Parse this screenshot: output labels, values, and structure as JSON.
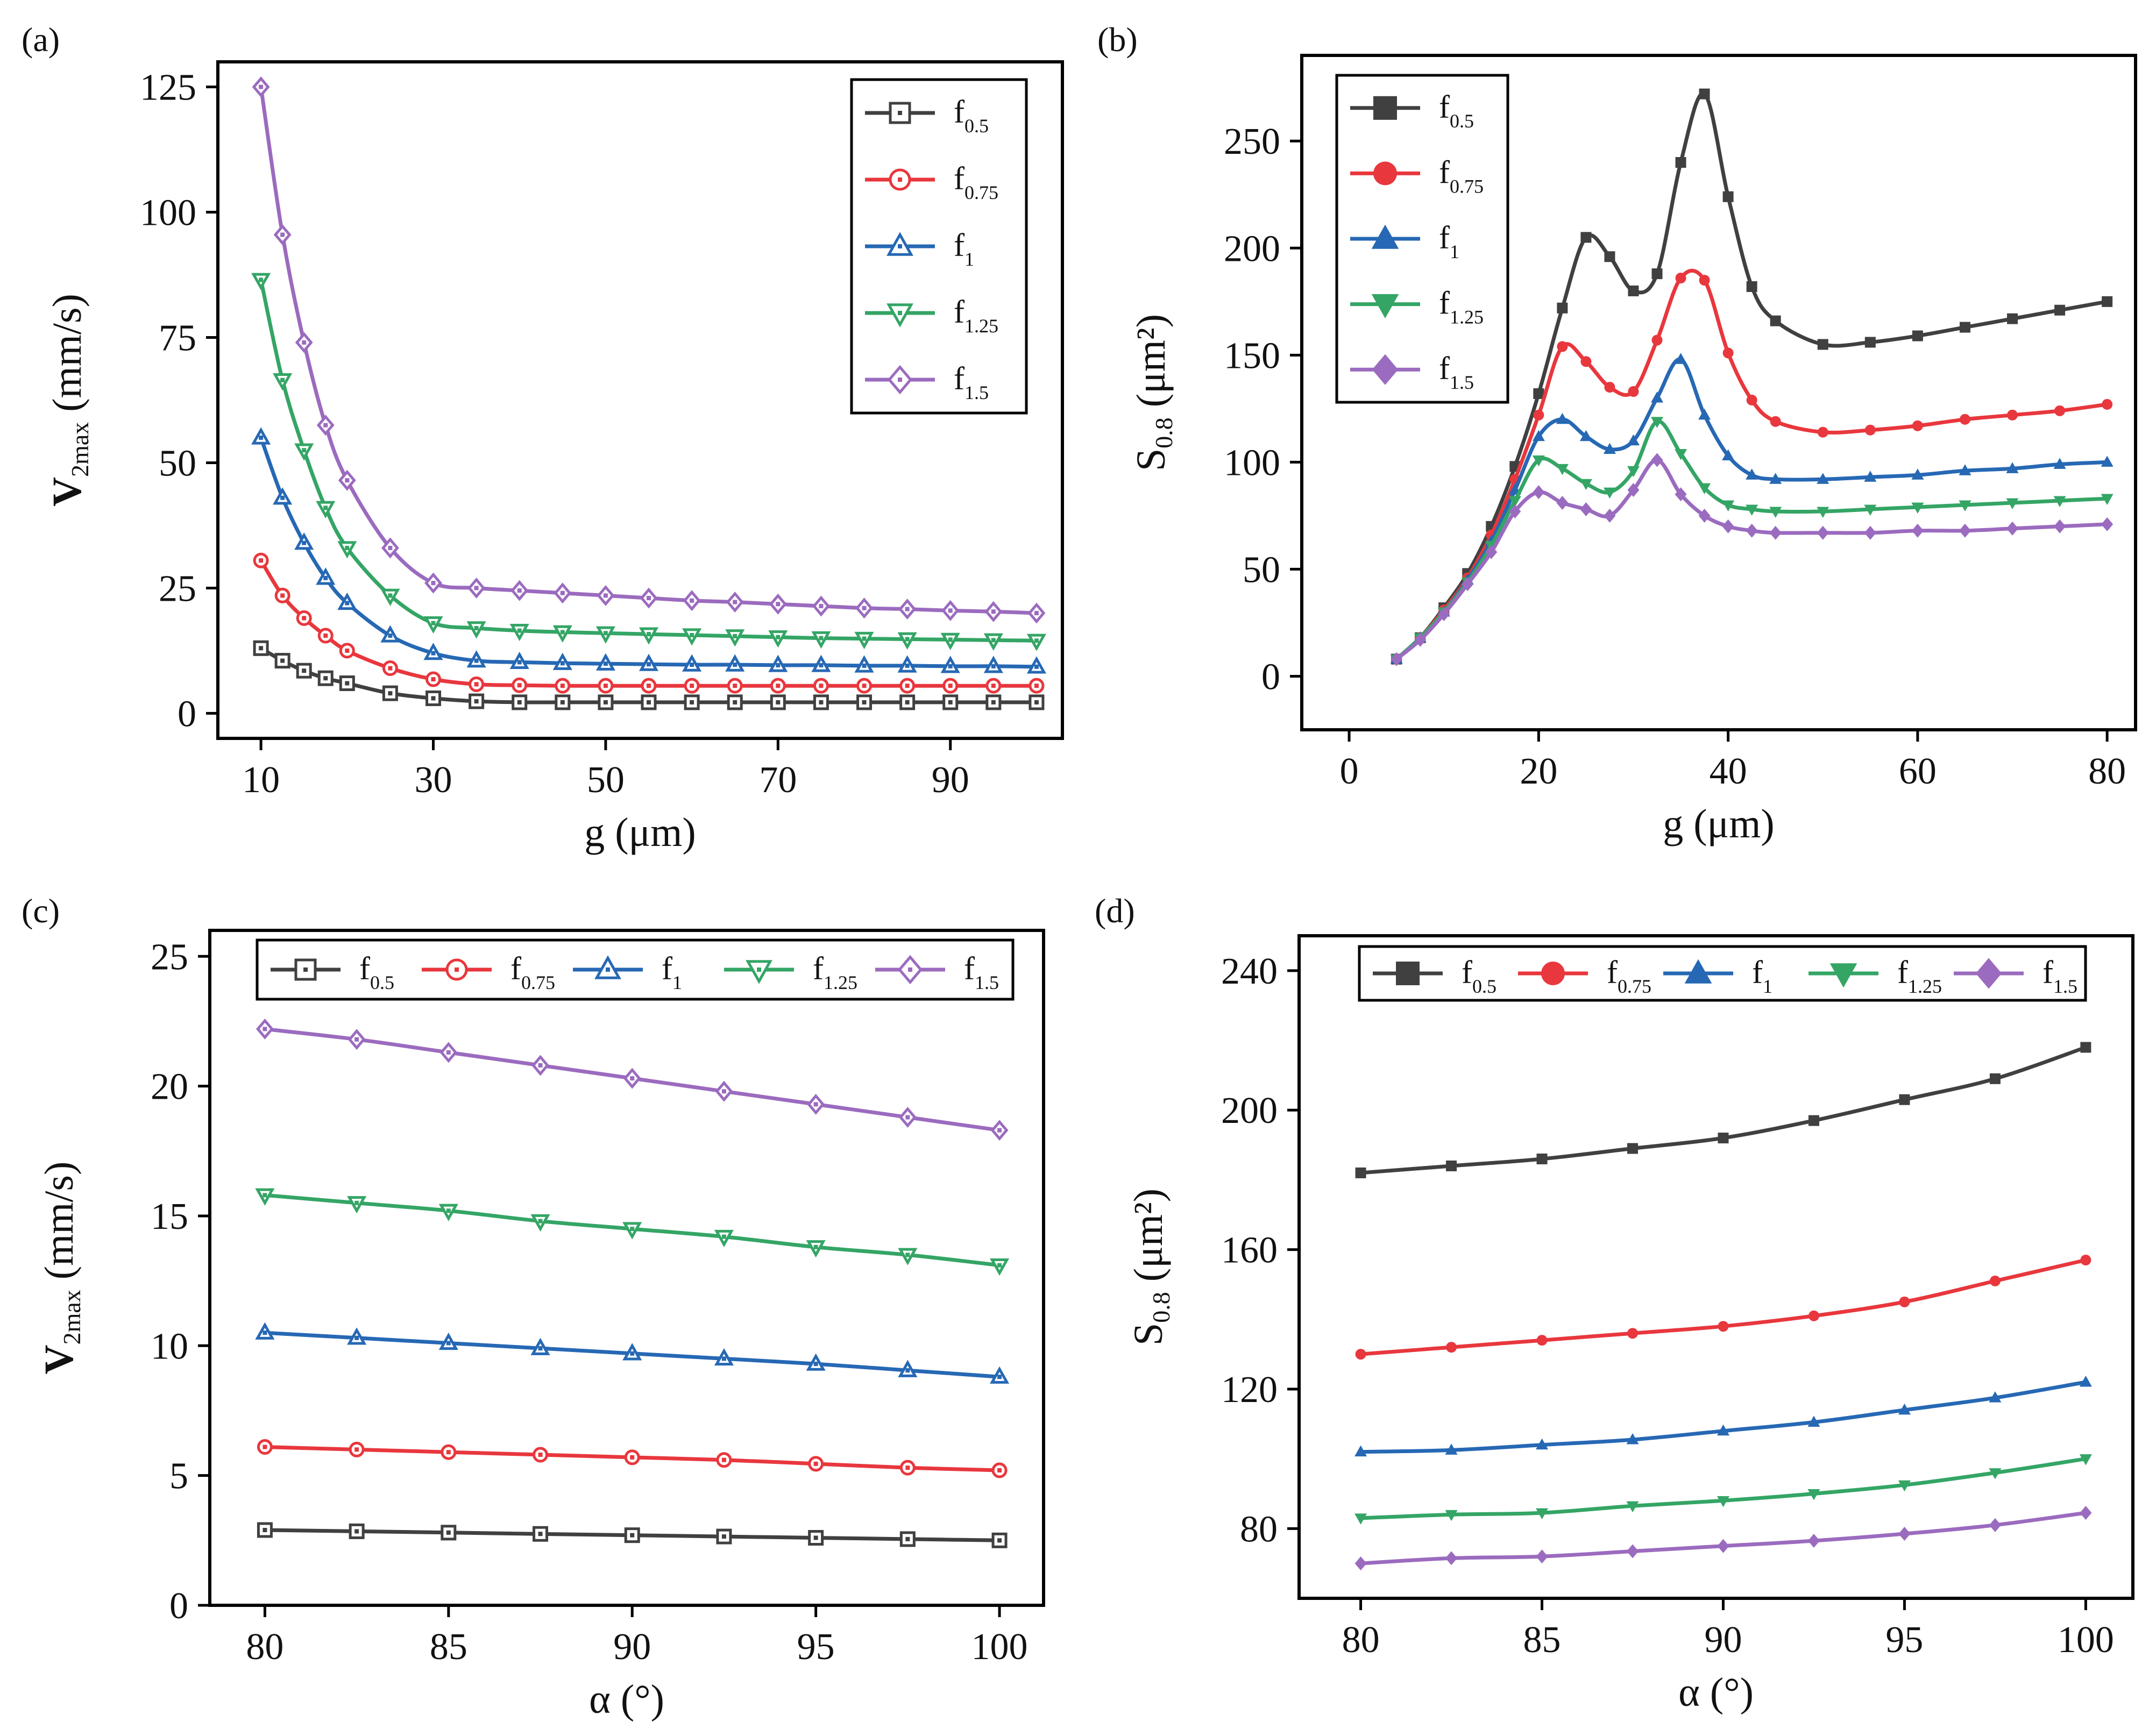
{
  "figure": {
    "colors": {
      "f0.5": "#404040",
      "f0.75": "#e8373d",
      "f1": "#2668b4",
      "f1.25": "#34a565",
      "f1.5": "#9b6bbf"
    }
  },
  "chart_data": [
    {
      "panel_label": "(a)",
      "type": "line",
      "marker_style": "open",
      "xlabel": "g (μm)",
      "ylabel_main": "V",
      "ylabel_sub": "2max",
      "ylabel_unit": " (mm/s)",
      "xlim": [
        5,
        103
      ],
      "ylim": [
        -5,
        130
      ],
      "xticks": [
        10,
        30,
        50,
        70,
        90
      ],
      "yticks": [
        0,
        25,
        50,
        75,
        100,
        125
      ],
      "legend_position": "top-right",
      "x": [
        10,
        12.5,
        15,
        17.5,
        20,
        25,
        30,
        35,
        40,
        45,
        50,
        55,
        60,
        65,
        70,
        75,
        80,
        85,
        90,
        95,
        100
      ],
      "series": [
        {
          "name": "f0.5",
          "base": "f",
          "sub": "0.5",
          "marker": "square",
          "values": [
            13,
            10.5,
            8.5,
            7,
            6,
            4,
            3,
            2.4,
            2.2,
            2.2,
            2.2,
            2.2,
            2.2,
            2.2,
            2.2,
            2.2,
            2.2,
            2.2,
            2.2,
            2.2,
            2.2
          ]
        },
        {
          "name": "f0.75",
          "base": "f",
          "sub": "0.75",
          "marker": "circle",
          "values": [
            30.5,
            23.5,
            19,
            15.5,
            12.5,
            9,
            6.8,
            5.8,
            5.6,
            5.5,
            5.5,
            5.5,
            5.5,
            5.5,
            5.5,
            5.5,
            5.5,
            5.5,
            5.5,
            5.5,
            5.5
          ]
        },
        {
          "name": "f1",
          "base": "f",
          "sub": "1",
          "marker": "triangle-up",
          "values": [
            55,
            43,
            34,
            27,
            22,
            15.5,
            12,
            10.5,
            10.2,
            10,
            9.9,
            9.8,
            9.7,
            9.7,
            9.6,
            9.6,
            9.5,
            9.5,
            9.4,
            9.4,
            9.3
          ]
        },
        {
          "name": "f1.25",
          "base": "f",
          "sub": "1.25",
          "marker": "triangle-down",
          "values": [
            86.5,
            66.5,
            52.5,
            41,
            33,
            23.5,
            18,
            17,
            16.5,
            16.2,
            16,
            15.8,
            15.6,
            15.4,
            15.2,
            15,
            14.9,
            14.8,
            14.7,
            14.6,
            14.5
          ]
        },
        {
          "name": "f1.5",
          "base": "f",
          "sub": "1.5",
          "marker": "diamond",
          "values": [
            125,
            95.5,
            74,
            57.5,
            46.5,
            33,
            26,
            25,
            24.5,
            24,
            23.5,
            23,
            22.5,
            22.2,
            21.8,
            21.4,
            21,
            20.8,
            20.5,
            20.3,
            20
          ]
        }
      ]
    },
    {
      "panel_label": "(b)",
      "type": "line",
      "marker_style": "filled",
      "xlabel": "g (μm)",
      "ylabel_main": "S",
      "ylabel_sub": "0.8",
      "ylabel_unit": " (μm²)",
      "xlim": [
        -5,
        83
      ],
      "ylim": [
        -25,
        290
      ],
      "xticks": [
        0,
        20,
        40,
        60,
        80
      ],
      "yticks": [
        0,
        50,
        100,
        150,
        200,
        250
      ],
      "legend_position": "top-left",
      "x": [
        5,
        7.5,
        10,
        12.5,
        15,
        17.5,
        20,
        22.5,
        25,
        27.5,
        30,
        32.5,
        35,
        37.5,
        40,
        42.5,
        45,
        50,
        55,
        60,
        65,
        70,
        75,
        80
      ],
      "series": [
        {
          "name": "f0.5",
          "base": "f",
          "sub": "0.5",
          "marker": "square",
          "values": [
            8,
            18,
            32,
            48,
            70,
            98,
            132,
            172,
            205,
            196,
            180,
            188,
            240,
            272,
            224,
            182,
            166,
            155,
            156,
            159,
            163,
            167,
            171,
            175
          ]
        },
        {
          "name": "f0.75",
          "base": "f",
          "sub": "0.75",
          "marker": "circle",
          "values": [
            8,
            18,
            31,
            46,
            66,
            92,
            122,
            154,
            147,
            135,
            133,
            157,
            186,
            185,
            151,
            129,
            119,
            114,
            115,
            117,
            120,
            122,
            124,
            127
          ]
        },
        {
          "name": "f1",
          "base": "f",
          "sub": "1",
          "marker": "triangle-up",
          "values": [
            8,
            18,
            30,
            45,
            63,
            87,
            112,
            120,
            112,
            106,
            110,
            130,
            148,
            122,
            103,
            94,
            92,
            92,
            93,
            94,
            96,
            97,
            99,
            100
          ]
        },
        {
          "name": "f1.25",
          "base": "f",
          "sub": "1.25",
          "marker": "triangle-down",
          "values": [
            8,
            18,
            30,
            44,
            61,
            82,
            101,
            97,
            90,
            86,
            96,
            119,
            104,
            88,
            80,
            78,
            77,
            77,
            78,
            79,
            80,
            81,
            82,
            83
          ]
        },
        {
          "name": "f1.5",
          "base": "f",
          "sub": "1.5",
          "marker": "diamond",
          "values": [
            8,
            17,
            29,
            43,
            58,
            77,
            86,
            81,
            78,
            75,
            87,
            101,
            85,
            75,
            70,
            68,
            67,
            67,
            67,
            68,
            68,
            69,
            70,
            71
          ]
        }
      ]
    },
    {
      "panel_label": "(c)",
      "type": "line",
      "marker_style": "open",
      "xlabel": "α (°)",
      "ylabel_main": "V",
      "ylabel_sub": "2max",
      "ylabel_unit": " (mm/s)",
      "xlim": [
        78.5,
        101.2
      ],
      "ylim": [
        0,
        26
      ],
      "xticks": [
        80,
        85,
        90,
        95,
        100
      ],
      "yticks": [
        0,
        5,
        10,
        15,
        20,
        25
      ],
      "legend_position": "top (horizontal)",
      "x": [
        80,
        82.5,
        85,
        87.5,
        90,
        92.5,
        95,
        97.5,
        100
      ],
      "series": [
        {
          "name": "f0.5",
          "base": "f",
          "sub": "0.5",
          "marker": "square",
          "values": [
            2.9,
            2.85,
            2.8,
            2.75,
            2.7,
            2.65,
            2.6,
            2.55,
            2.5
          ]
        },
        {
          "name": "f0.75",
          "base": "f",
          "sub": "0.75",
          "marker": "circle",
          "values": [
            6.1,
            6.0,
            5.9,
            5.8,
            5.7,
            5.6,
            5.45,
            5.3,
            5.2
          ]
        },
        {
          "name": "f1",
          "base": "f",
          "sub": "1",
          "marker": "triangle-up",
          "values": [
            10.5,
            10.3,
            10.1,
            9.9,
            9.7,
            9.5,
            9.3,
            9.05,
            8.8
          ]
        },
        {
          "name": "f1.25",
          "base": "f",
          "sub": "1.25",
          "marker": "triangle-down",
          "values": [
            15.8,
            15.5,
            15.2,
            14.8,
            14.5,
            14.2,
            13.8,
            13.5,
            13.1
          ]
        },
        {
          "name": "f1.5",
          "base": "f",
          "sub": "1.5",
          "marker": "diamond",
          "values": [
            22.2,
            21.8,
            21.3,
            20.8,
            20.3,
            19.8,
            19.3,
            18.8,
            18.3
          ]
        }
      ]
    },
    {
      "panel_label": "(d)",
      "type": "line",
      "marker_style": "filled",
      "xlabel": "α (°)",
      "ylabel_main": "S",
      "ylabel_sub": "0.8",
      "ylabel_unit": " (μm²)",
      "xlim": [
        78.3,
        101.3
      ],
      "ylim": [
        60,
        250
      ],
      "xticks": [
        80,
        85,
        90,
        95,
        100
      ],
      "yticks": [
        80,
        120,
        160,
        200,
        240
      ],
      "legend_position": "top (horizontal)",
      "x": [
        80,
        82.5,
        85,
        87.5,
        90,
        92.5,
        95,
        97.5,
        100
      ],
      "series": [
        {
          "name": "f0.5",
          "base": "f",
          "sub": "0.5",
          "marker": "square",
          "values": [
            182,
            184,
            186,
            189,
            192,
            197,
            203,
            209,
            218
          ]
        },
        {
          "name": "f0.75",
          "base": "f",
          "sub": "0.75",
          "marker": "circle",
          "values": [
            130,
            132,
            134,
            136,
            138,
            141,
            145,
            151,
            157
          ]
        },
        {
          "name": "f1",
          "base": "f",
          "sub": "1",
          "marker": "triangle-up",
          "values": [
            102,
            102.5,
            104,
            105.5,
            108,
            110.5,
            114,
            117.5,
            122
          ]
        },
        {
          "name": "f1.25",
          "base": "f",
          "sub": "1.25",
          "marker": "triangle-down",
          "values": [
            83,
            84,
            84.5,
            86.5,
            88,
            90,
            92.5,
            96,
            100
          ]
        },
        {
          "name": "f1.5",
          "base": "f",
          "sub": "1.5",
          "marker": "diamond",
          "values": [
            70,
            71.5,
            72,
            73.5,
            75,
            76.5,
            78.5,
            81,
            84.5
          ]
        }
      ]
    }
  ]
}
